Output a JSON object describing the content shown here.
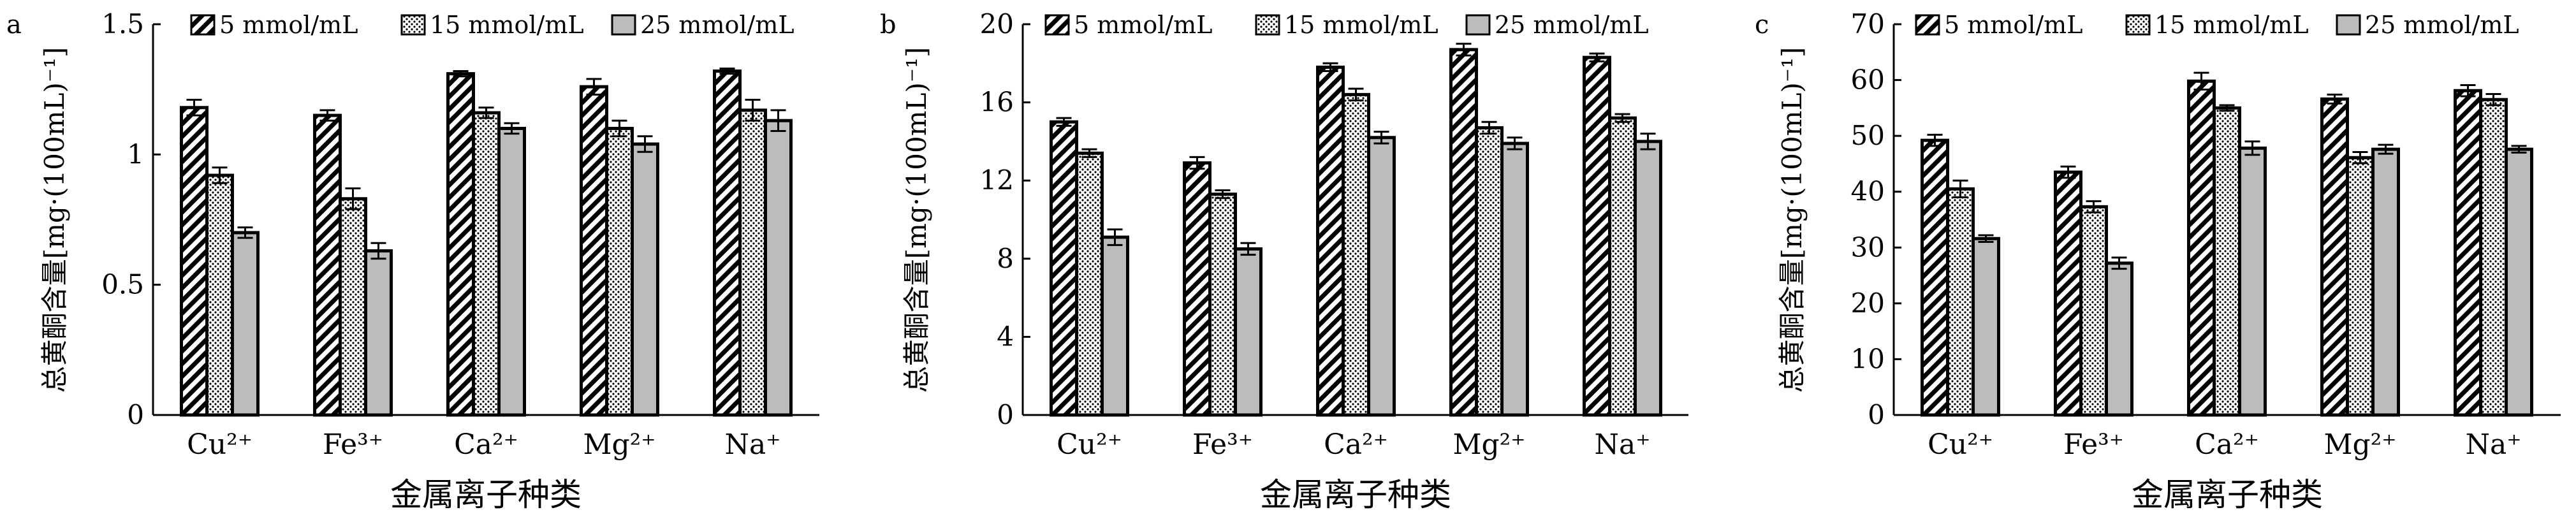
{
  "chart_data": [
    {
      "type": "bar",
      "panel_label": "a",
      "categories": [
        "Cu²⁺",
        "Fe³⁺",
        "Ca²⁺",
        "Mg²⁺",
        "Na⁺"
      ],
      "xlabel": "金属离子种类",
      "ylabel": "总黄酮含量[mg·(100mL)⁻¹]",
      "ylim": [
        0,
        1.5
      ],
      "yticks": [
        "0",
        "0.5",
        "1",
        "1.5"
      ],
      "ytick_values": [
        0,
        0.5,
        1,
        1.5
      ],
      "legend_position": "top",
      "series": [
        {
          "name": "5 mmol/mL",
          "values": [
            1.18,
            1.15,
            1.31,
            1.26,
            1.32
          ],
          "errors": [
            0.03,
            0.02,
            0.01,
            0.03,
            0.01
          ]
        },
        {
          "name": "15 mmol/mL",
          "values": [
            0.92,
            0.83,
            1.16,
            1.1,
            1.17
          ],
          "errors": [
            0.03,
            0.04,
            0.02,
            0.03,
            0.04
          ]
        },
        {
          "name": "25 mmol/mL",
          "values": [
            0.7,
            0.63,
            1.1,
            1.04,
            1.13
          ],
          "errors": [
            0.02,
            0.03,
            0.02,
            0.03,
            0.04
          ]
        }
      ]
    },
    {
      "type": "bar",
      "panel_label": "b",
      "categories": [
        "Cu²⁺",
        "Fe³⁺",
        "Ca²⁺",
        "Mg²⁺",
        "Na⁺"
      ],
      "xlabel": "金属离子种类",
      "ylabel": "总黄酮含量[mg·(100mL)⁻¹]",
      "ylim": [
        0,
        20
      ],
      "yticks": [
        "0",
        "4",
        "8",
        "12",
        "16",
        "20"
      ],
      "ytick_values": [
        0,
        4,
        8,
        12,
        16,
        20
      ],
      "legend_position": "top",
      "series": [
        {
          "name": "5 mmol/mL",
          "values": [
            15.0,
            12.9,
            17.8,
            18.7,
            18.3
          ],
          "errors": [
            0.2,
            0.3,
            0.2,
            0.3,
            0.2
          ]
        },
        {
          "name": "15 mmol/mL",
          "values": [
            13.4,
            11.3,
            16.4,
            14.7,
            15.2
          ],
          "errors": [
            0.2,
            0.2,
            0.3,
            0.3,
            0.2
          ]
        },
        {
          "name": "25 mmol/mL",
          "values": [
            9.1,
            8.5,
            14.2,
            13.9,
            14.0
          ],
          "errors": [
            0.4,
            0.3,
            0.3,
            0.3,
            0.4
          ]
        }
      ]
    },
    {
      "type": "bar",
      "panel_label": "c",
      "categories": [
        "Cu²⁺",
        "Fe³⁺",
        "Ca²⁺",
        "Mg²⁺",
        "Na⁺"
      ],
      "xlabel": "金属离子种类",
      "ylabel": "总黄酮含量[mg·(100mL)⁻¹]",
      "ylim": [
        0,
        70
      ],
      "yticks": [
        "0",
        "10",
        "20",
        "30",
        "40",
        "50",
        "60",
        "70"
      ],
      "ytick_values": [
        0,
        10,
        20,
        30,
        40,
        50,
        60,
        70
      ],
      "legend_position": "top",
      "series": [
        {
          "name": "5 mmol/mL",
          "values": [
            49.2,
            43.5,
            59.8,
            56.6,
            58.1
          ],
          "errors": [
            1.0,
            1.0,
            1.5,
            0.8,
            1.0
          ]
        },
        {
          "name": "15 mmol/mL",
          "values": [
            40.5,
            37.3,
            55.0,
            46.1,
            56.5
          ],
          "errors": [
            1.5,
            1.0,
            0.5,
            1.0,
            1.0
          ]
        },
        {
          "name": "25 mmol/mL",
          "values": [
            31.6,
            27.2,
            47.8,
            47.6,
            47.6
          ],
          "errors": [
            0.6,
            1.0,
            1.2,
            0.8,
            0.6
          ]
        }
      ]
    }
  ]
}
